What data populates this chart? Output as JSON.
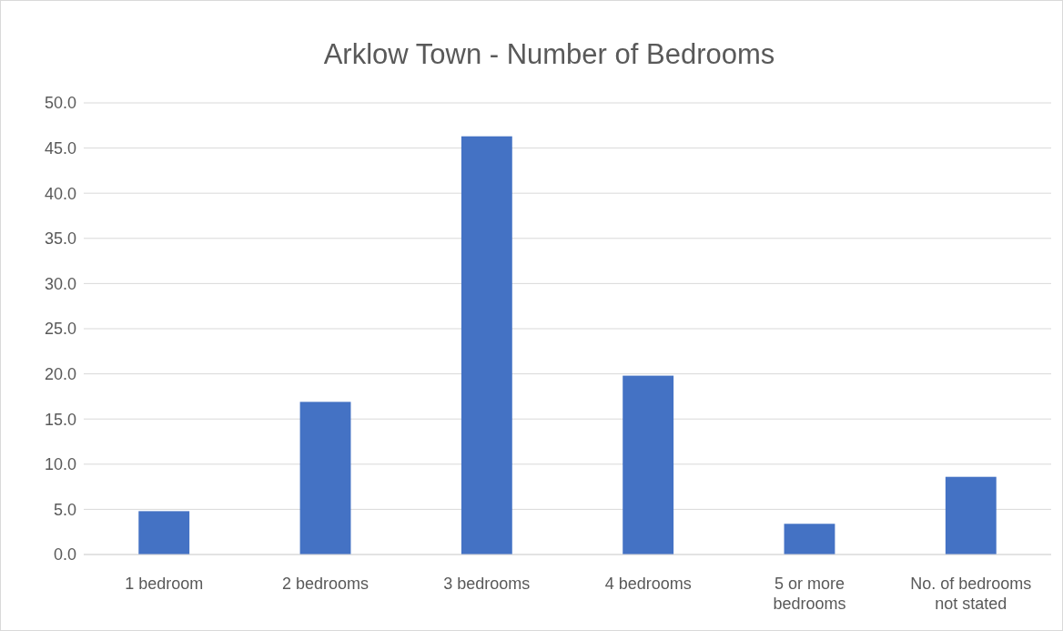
{
  "chart_data": {
    "type": "bar",
    "title": "Arklow Town - Number of Bedrooms",
    "categories": [
      "1 bedroom",
      "2 bedrooms",
      "3 bedrooms",
      "4 bedrooms",
      "5 or more bedrooms",
      "No. of bedrooms not stated"
    ],
    "values": [
      4.8,
      16.9,
      46.3,
      19.8,
      3.4,
      8.6
    ],
    "color": "#4472c4",
    "ylim": [
      0,
      50
    ],
    "yticks": [
      {
        "value": 0,
        "label": "0.0"
      },
      {
        "value": 5,
        "label": "5.0"
      },
      {
        "value": 10,
        "label": "10.0"
      },
      {
        "value": 15,
        "label": "15.0"
      },
      {
        "value": 20,
        "label": "20.0"
      },
      {
        "value": 25,
        "label": "25.0"
      },
      {
        "value": 30,
        "label": "30.0"
      },
      {
        "value": 35,
        "label": "35.0"
      },
      {
        "value": 40,
        "label": "40.0"
      },
      {
        "value": 45,
        "label": "45.0"
      },
      {
        "value": 50,
        "label": "50.0"
      }
    ],
    "grid": true
  }
}
